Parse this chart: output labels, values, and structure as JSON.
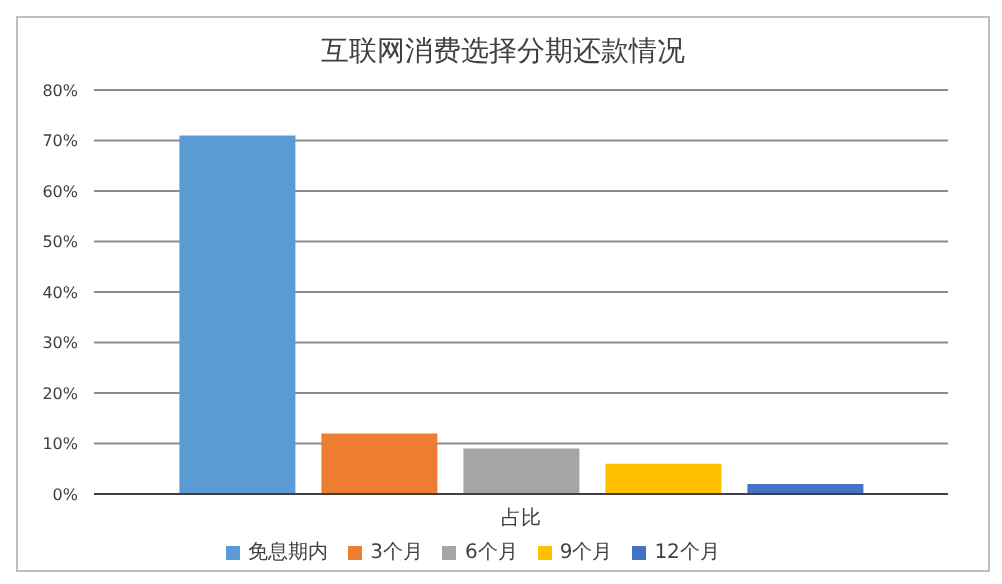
{
  "chart_data": {
    "type": "bar",
    "title": "互联网消费选择分期还款情况",
    "categories": [
      "占比"
    ],
    "series": [
      {
        "name": "免息期内",
        "color": "#5b9bd5",
        "values": [
          71
        ]
      },
      {
        "name": "3个月",
        "color": "#ed7d31",
        "values": [
          12
        ]
      },
      {
        "name": "6个月",
        "color": "#a5a5a5",
        "values": [
          9
        ]
      },
      {
        "name": "9个月",
        "color": "#ffc000",
        "values": [
          6
        ]
      },
      {
        "name": "12个月",
        "color": "#4472c4",
        "values": [
          2
        ]
      }
    ],
    "ylim": [
      0,
      80
    ],
    "yticks": [
      {
        "value": 0,
        "label": "0%"
      },
      {
        "value": 10,
        "label": "10%"
      },
      {
        "value": 20,
        "label": "20%"
      },
      {
        "value": 30,
        "label": "30%"
      },
      {
        "value": 40,
        "label": "40%"
      },
      {
        "value": 50,
        "label": "50%"
      },
      {
        "value": 60,
        "label": "60%"
      },
      {
        "value": 70,
        "label": "70%"
      },
      {
        "value": 80,
        "label": "80%"
      }
    ],
    "grid": "y",
    "legend": "bottom"
  }
}
